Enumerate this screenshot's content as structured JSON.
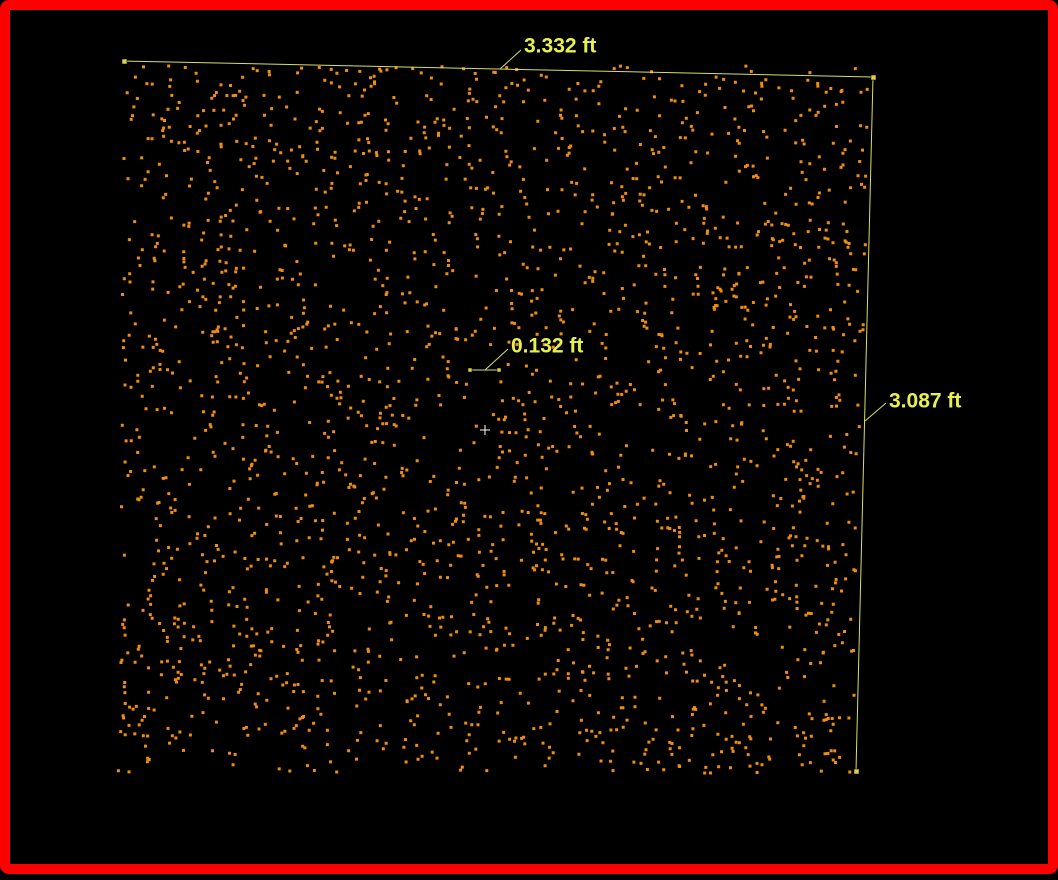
{
  "measurements": [
    {
      "label": "3.332 ft"
    },
    {
      "label": "0.132 ft"
    },
    {
      "label": "3.087 ft"
    }
  ]
}
